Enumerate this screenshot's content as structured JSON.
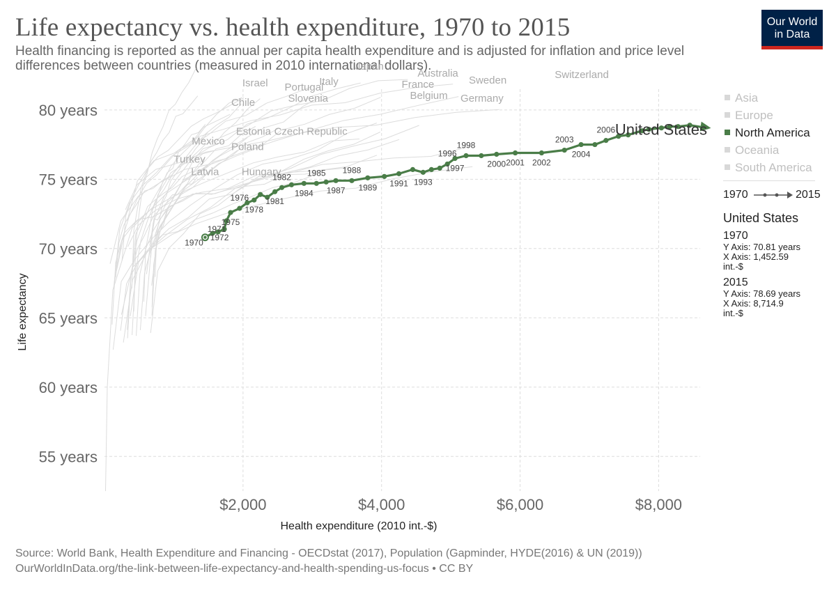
{
  "title": "Life expectancy vs. health expenditure, 1970 to 2015",
  "subtitle": "Health financing is reported as the annual per capita health expenditure and is adjusted for inflation and price level differences between countries (measured in 2010 international dollars).",
  "logo": {
    "line1": "Our World",
    "line2": "in Data"
  },
  "legend": {
    "items": [
      {
        "label": "Asia",
        "color": "#cccccc",
        "active": false
      },
      {
        "label": "Europe",
        "color": "#cccccc",
        "active": false
      },
      {
        "label": "North America",
        "color": "#4a7d48",
        "active": true
      },
      {
        "label": "Oceania",
        "color": "#cccccc",
        "active": false
      },
      {
        "label": "South America",
        "color": "#cccccc",
        "active": false
      }
    ],
    "time_start": "1970",
    "time_end": "2015"
  },
  "info_panel": {
    "entity": "United States",
    "start": {
      "year": "1970",
      "y_line": "Y Axis: 70.81 years",
      "x_line": "X Axis: 1,452.59",
      "unit": "int.-$"
    },
    "end": {
      "year": "2015",
      "y_line": "Y Axis: 78.69 years",
      "x_line": "X Axis: 8,714.9",
      "unit": "int.-$"
    }
  },
  "source": {
    "line1": "Source: World Bank, Health Expenditure and Financing - OECDstat (2017), Population (Gapminder, HYDE(2016) & UN (2019))",
    "line2": "OurWorldInData.org/the-link-between-life-expectancy-and-health-spending-us-focus • CC BY"
  },
  "colors": {
    "highlight": "#4a7d48",
    "background_series": "#dcdcdc",
    "grid": "#dddddd",
    "title": "#555555"
  },
  "chart_data": {
    "type": "scatter",
    "title": "Life expectancy vs. health expenditure, 1970 to 2015",
    "xlabel": "Health expenditure (2010 int.-$)",
    "ylabel": "Life expectancy",
    "xlim": [
      0,
      8700
    ],
    "ylim": [
      52.5,
      81.5
    ],
    "x_ticks": [
      {
        "value": 2000,
        "label": "$2,000"
      },
      {
        "value": 4000,
        "label": "$4,000"
      },
      {
        "value": 6000,
        "label": "$6,000"
      },
      {
        "value": 8000,
        "label": "$8,000"
      }
    ],
    "y_ticks": [
      {
        "value": 55,
        "label": "55 years"
      },
      {
        "value": 60,
        "label": "60 years"
      },
      {
        "value": 65,
        "label": "65 years"
      },
      {
        "value": 70,
        "label": "70 years"
      },
      {
        "value": 75,
        "label": "75 years"
      },
      {
        "value": 80,
        "label": "80 years"
      }
    ],
    "grid": true,
    "legend_position": "right",
    "highlight_series": {
      "name": "United States",
      "points": [
        {
          "year": 1970,
          "x": 1452.59,
          "y": 70.81
        },
        {
          "year": 1971,
          "x": 1560,
          "y": 71.1
        },
        {
          "year": 1972,
          "x": 1640,
          "y": 71.2
        },
        {
          "year": 1973,
          "x": 1730,
          "y": 71.4
        },
        {
          "year": 1974,
          "x": 1760,
          "y": 72.0
        },
        {
          "year": 1975,
          "x": 1820,
          "y": 72.6
        },
        {
          "year": 1976,
          "x": 1950,
          "y": 72.9
        },
        {
          "year": 1977,
          "x": 2060,
          "y": 73.3
        },
        {
          "year": 1978,
          "x": 2160,
          "y": 73.5
        },
        {
          "year": 1979,
          "x": 2250,
          "y": 73.9
        },
        {
          "year": 1980,
          "x": 2350,
          "y": 73.7
        },
        {
          "year": 1981,
          "x": 2460,
          "y": 74.1
        },
        {
          "year": 1982,
          "x": 2560,
          "y": 74.4
        },
        {
          "year": 1983,
          "x": 2700,
          "y": 74.6
        },
        {
          "year": 1984,
          "x": 2880,
          "y": 74.7
        },
        {
          "year": 1985,
          "x": 3060,
          "y": 74.7
        },
        {
          "year": 1986,
          "x": 3200,
          "y": 74.8
        },
        {
          "year": 1987,
          "x": 3340,
          "y": 74.9
        },
        {
          "year": 1988,
          "x": 3570,
          "y": 74.9
        },
        {
          "year": 1989,
          "x": 3800,
          "y": 75.1
        },
        {
          "year": 1990,
          "x": 4040,
          "y": 75.2
        },
        {
          "year": 1991,
          "x": 4250,
          "y": 75.4
        },
        {
          "year": 1992,
          "x": 4450,
          "y": 75.7
        },
        {
          "year": 1993,
          "x": 4600,
          "y": 75.5
        },
        {
          "year": 1994,
          "x": 4720,
          "y": 75.7
        },
        {
          "year": 1995,
          "x": 4840,
          "y": 75.8
        },
        {
          "year": 1996,
          "x": 4950,
          "y": 76.1
        },
        {
          "year": 1997,
          "x": 5060,
          "y": 76.5
        },
        {
          "year": 1998,
          "x": 5220,
          "y": 76.7
        },
        {
          "year": 1999,
          "x": 5440,
          "y": 76.7
        },
        {
          "year": 2000,
          "x": 5660,
          "y": 76.8
        },
        {
          "year": 2001,
          "x": 5930,
          "y": 76.9
        },
        {
          "year": 2002,
          "x": 6310,
          "y": 76.9
        },
        {
          "year": 2003,
          "x": 6640,
          "y": 77.1
        },
        {
          "year": 2004,
          "x": 6880,
          "y": 77.5
        },
        {
          "year": 2005,
          "x": 7080,
          "y": 77.5
        },
        {
          "year": 2006,
          "x": 7240,
          "y": 77.8
        },
        {
          "year": 2007,
          "x": 7420,
          "y": 78.1
        },
        {
          "year": 2008,
          "x": 7560,
          "y": 78.2
        },
        {
          "year": 2009,
          "x": 7760,
          "y": 78.5
        },
        {
          "year": 2010,
          "x": 7860,
          "y": 78.6
        },
        {
          "year": 2011,
          "x": 8040,
          "y": 78.7
        },
        {
          "year": 2012,
          "x": 8160,
          "y": 78.8
        },
        {
          "year": 2013,
          "x": 8280,
          "y": 78.8
        },
        {
          "year": 2014,
          "x": 8450,
          "y": 78.9
        },
        {
          "year": 2015,
          "x": 8714.9,
          "y": 78.69
        }
      ],
      "year_labels_above": [
        1976,
        1982,
        1985,
        1988,
        1996,
        1998,
        2003,
        2006
      ],
      "year_labels_below": [
        1970,
        1971,
        1972,
        1975,
        1978,
        1981,
        1984,
        1987,
        1989,
        1991,
        1993,
        1997,
        2000,
        2001,
        2002,
        2004
      ]
    },
    "background_labels": [
      {
        "name": "Japan",
        "x": 3620,
        "y": 82.9
      },
      {
        "name": "Australia",
        "x": 4520,
        "y": 82.4
      },
      {
        "name": "Switzerland",
        "x": 6500,
        "y": 82.3
      },
      {
        "name": "Israel",
        "x": 1990,
        "y": 81.7
      },
      {
        "name": "Italy",
        "x": 3100,
        "y": 81.8
      },
      {
        "name": "Sweden",
        "x": 5260,
        "y": 81.9
      },
      {
        "name": "Portugal",
        "x": 2600,
        "y": 81.4
      },
      {
        "name": "France",
        "x": 4290,
        "y": 81.6
      },
      {
        "name": "Slovenia",
        "x": 2650,
        "y": 80.6
      },
      {
        "name": "Belgium",
        "x": 4410,
        "y": 80.8
      },
      {
        "name": "Germany",
        "x": 5140,
        "y": 80.6
      },
      {
        "name": "Chile",
        "x": 1830,
        "y": 80.3
      },
      {
        "name": "Estonia",
        "x": 1900,
        "y": 78.2
      },
      {
        "name": "Czech Republic",
        "x": 2450,
        "y": 78.2
      },
      {
        "name": "Mexico",
        "x": 1260,
        "y": 77.5
      },
      {
        "name": "Poland",
        "x": 1830,
        "y": 77.1
      },
      {
        "name": "Turkey",
        "x": 1000,
        "y": 76.2
      },
      {
        "name": "Latvia",
        "x": 1250,
        "y": 75.3
      },
      {
        "name": "Hungary",
        "x": 1980,
        "y": 75.3
      }
    ]
  }
}
